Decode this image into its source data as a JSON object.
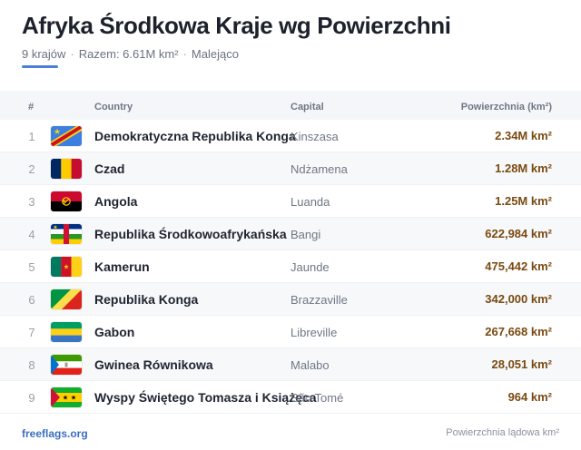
{
  "header": {
    "title": "Afryka Środkowa Kraje wg Powierzchni",
    "count": "9 krajów",
    "total": "Razem: 6.61M km²",
    "sort": "Malejąco",
    "separator": "·"
  },
  "table": {
    "columns": {
      "num": "#",
      "country": "Country",
      "capital": "Capital",
      "area": "Powierzchnia (km²)"
    },
    "rows": [
      {
        "num": "1",
        "country": "Demokratyczna Republika Konga",
        "capital": "Kinszasa",
        "area": "2.34M km²",
        "flag": "drc-flag-icon"
      },
      {
        "num": "2",
        "country": "Czad",
        "capital": "Ndżamena",
        "area": "1.28M km²",
        "flag": "chad-flag-icon"
      },
      {
        "num": "3",
        "country": "Angola",
        "capital": "Luanda",
        "area": "1.25M km²",
        "flag": "angola-flag-icon"
      },
      {
        "num": "4",
        "country": "Republika Środkowoafrykańska",
        "capital": "Bangi",
        "area": "622,984 km²",
        "flag": "car-flag-icon"
      },
      {
        "num": "5",
        "country": "Kamerun",
        "capital": "Jaunde",
        "area": "475,442 km²",
        "flag": "cameroon-flag-icon"
      },
      {
        "num": "6",
        "country": "Republika Konga",
        "capital": "Brazzaville",
        "area": "342,000 km²",
        "flag": "congo-flag-icon"
      },
      {
        "num": "7",
        "country": "Gabon",
        "capital": "Libreville",
        "area": "267,668 km²",
        "flag": "gabon-flag-icon"
      },
      {
        "num": "8",
        "country": "Gwinea Równikowa",
        "capital": "Malabo",
        "area": "28,051 km²",
        "flag": "equatorial-guinea-flag-icon"
      },
      {
        "num": "9",
        "country": "Wyspy Świętego Tomasza i Książęca",
        "capital": "São Tomé",
        "area": "964 km²",
        "flag": "sao-tome-flag-icon"
      }
    ]
  },
  "footer": {
    "source": "freeflags.org",
    "note": "Powierzchnia lądowa km²"
  },
  "colors": {
    "accent": "#4a7fd4",
    "area_text": "#7a4a12",
    "header_bg": "#f4f6f9"
  }
}
